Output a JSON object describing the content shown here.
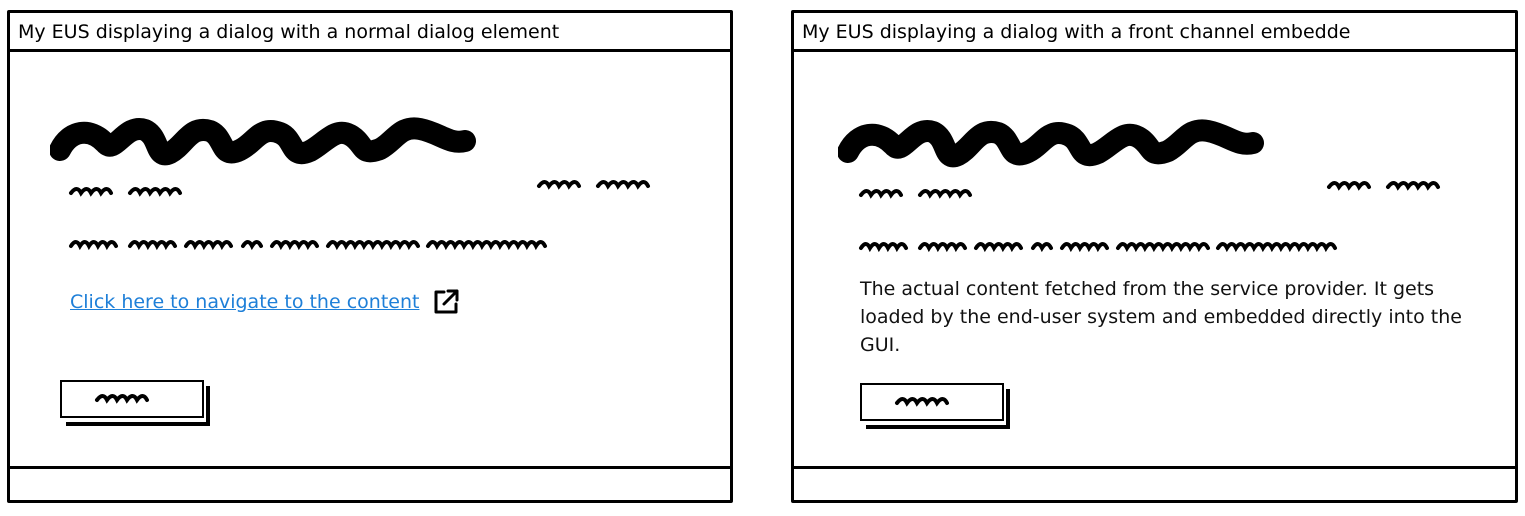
{
  "left_window": {
    "title": "My EUS displaying a dialog with a normal dialog element",
    "link_text": "Click here to navigate to the content",
    "link_icon": "external-link-icon"
  },
  "right_window": {
    "title": "My EUS displaying a dialog with a front channel embedde",
    "content_text": "The actual content fetched from the service provider. It gets loaded by the end-user system and embedded directly into the GUI."
  },
  "colors": {
    "link": "#1e7fd8",
    "stroke": "#000000",
    "background": "#ffffff"
  }
}
